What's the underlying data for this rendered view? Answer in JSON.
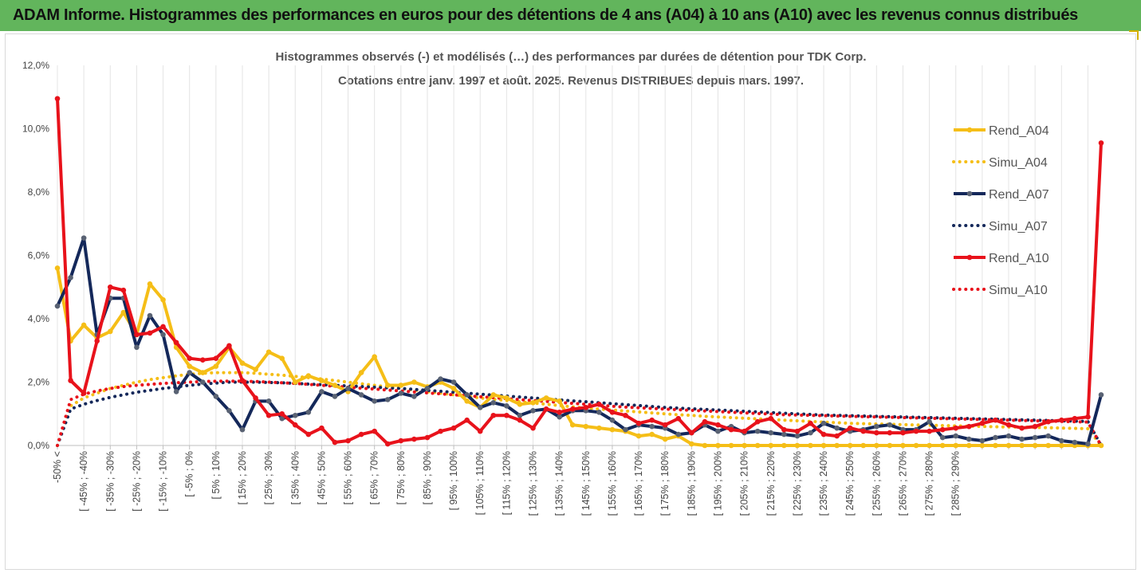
{
  "report_title": "ADAM Informe. Histogrammes des performances en euros pour des détentions de 4 ans (A04) à 10 ans (A10) avec les revenus connus distribués",
  "chart_data": {
    "type": "line",
    "title_lines": [
      "Histogrammes observés (-) et modélisés (…) des performances par durées de détention pour TDK Corp.",
      "Cotations entre janv. 1997 et août. 2025. Revenus DISTRIBUES depuis mars. 1997."
    ],
    "ylim": [
      0,
      12
    ],
    "y_ticks": [
      0,
      2,
      4,
      6,
      8,
      10,
      12
    ],
    "y_tick_labels": [
      "0,0%",
      "2,0%",
      "4,0%",
      "6,0%",
      "8,0%",
      "10,0%",
      "12,0%"
    ],
    "grid": "vertical",
    "legend_position": "right",
    "x_tick_labels": [
      "-50% <",
      "[ -45% ; -40%",
      "[ -35% ; -30%",
      "[ -25% ; -20%",
      "[ -15% ; -10%",
      "[ -5% ; 0%",
      "[ 5% ; 10%",
      "[ 15% ; 20%",
      "[ 25% ; 30%",
      "[ 35% ; 40%",
      "[ 45% ; 50%",
      "[ 55% ; 60%",
      "[ 65% ; 70%",
      "[ 75% ; 80%",
      "[ 85% ; 90%",
      "[ 95% ; 100%",
      "[ 105% ; 110%",
      "[ 115% ; 120%",
      "[ 125% ; 130%",
      "[ 135% ; 140%",
      "[ 145% ; 150%",
      "[ 155% ; 160%",
      "[ 165% ; 170%",
      "[ 175% ; 180%",
      "[ 185% ; 190%",
      "[ 195% ; 200%",
      "[ 205% ; 210%",
      "[ 215% ; 220%",
      "[ 225% ; 230%",
      "[ 235% ; 240%",
      "[ 245% ; 250%",
      "[ 255% ; 260%",
      "[ 265% ; 270%",
      "[ 275% ; 280%",
      "[ 285% ; 290%"
    ],
    "series": [
      {
        "name": "Rend_A04",
        "color": "#f5be17",
        "style": "solid-markers",
        "values": [
          5.6,
          3.3,
          3.8,
          3.4,
          3.6,
          4.2,
          3.5,
          5.1,
          4.6,
          3.1,
          2.5,
          2.3,
          2.5,
          3.1,
          2.6,
          2.4,
          2.95,
          2.75,
          2.0,
          2.2,
          2.05,
          1.9,
          1.7,
          2.3,
          2.8,
          1.9,
          1.9,
          2.0,
          1.85,
          2.0,
          1.8,
          1.4,
          1.2,
          1.6,
          1.5,
          1.3,
          1.35,
          1.5,
          1.4,
          0.65,
          0.6,
          0.55,
          0.5,
          0.45,
          0.3,
          0.35,
          0.2,
          0.3,
          0.05,
          0.0,
          0.0,
          0.0,
          0.0,
          0.0,
          0.0,
          0.0,
          0.0,
          0.0,
          0.0,
          0.0,
          0.0,
          0.0,
          0.0,
          0.0,
          0.0,
          0.0,
          0.0,
          0.0,
          0.0,
          0.0,
          0.0,
          0.0,
          0.0,
          0.0,
          0.0,
          0.0,
          0.0,
          0.0,
          0.0,
          0.0
        ]
      },
      {
        "name": "Simu_A04",
        "color": "#f5be17",
        "style": "dotted",
        "values": [
          0.0,
          1.25,
          1.5,
          1.65,
          1.8,
          1.9,
          2.0,
          2.08,
          2.14,
          2.2,
          2.25,
          2.28,
          2.3,
          2.3,
          2.3,
          2.28,
          2.25,
          2.22,
          2.18,
          2.14,
          2.1,
          2.05,
          2.0,
          1.95,
          1.9,
          1.85,
          1.8,
          1.75,
          1.7,
          1.65,
          1.6,
          1.55,
          1.5,
          1.46,
          1.42,
          1.38,
          1.34,
          1.3,
          1.26,
          1.22,
          1.18,
          1.15,
          1.12,
          1.09,
          1.06,
          1.03,
          1.0,
          0.97,
          0.95,
          0.92,
          0.9,
          0.88,
          0.86,
          0.84,
          0.82,
          0.8,
          0.78,
          0.76,
          0.74,
          0.72,
          0.7,
          0.69,
          0.68,
          0.67,
          0.66,
          0.65,
          0.64,
          0.63,
          0.62,
          0.61,
          0.6,
          0.59,
          0.58,
          0.58,
          0.57,
          0.56,
          0.55,
          0.54,
          0.53,
          0.0
        ]
      },
      {
        "name": "Rend_A07",
        "color": "#14285a",
        "style": "solid-markers",
        "values": [
          4.4,
          5.3,
          6.55,
          3.5,
          4.65,
          4.65,
          3.1,
          4.1,
          3.5,
          1.7,
          2.3,
          2.0,
          1.55,
          1.1,
          0.5,
          1.4,
          1.4,
          0.85,
          0.95,
          1.05,
          1.7,
          1.55,
          1.8,
          1.6,
          1.4,
          1.45,
          1.65,
          1.55,
          1.8,
          2.1,
          2.0,
          1.6,
          1.2,
          1.35,
          1.25,
          0.95,
          1.1,
          1.15,
          0.9,
          1.1,
          1.1,
          1.05,
          0.8,
          0.5,
          0.65,
          0.6,
          0.55,
          0.35,
          0.4,
          0.65,
          0.45,
          0.6,
          0.4,
          0.45,
          0.4,
          0.35,
          0.3,
          0.4,
          0.7,
          0.55,
          0.45,
          0.5,
          0.6,
          0.65,
          0.5,
          0.5,
          0.75,
          0.25,
          0.3,
          0.2,
          0.15,
          0.25,
          0.3,
          0.2,
          0.25,
          0.3,
          0.15,
          0.1,
          0.05,
          1.6
        ]
      },
      {
        "name": "Simu_A07",
        "color": "#14285a",
        "style": "dotted",
        "values": [
          0.0,
          1.15,
          1.3,
          1.42,
          1.52,
          1.6,
          1.68,
          1.74,
          1.8,
          1.85,
          1.9,
          1.94,
          1.97,
          2.0,
          2.0,
          2.0,
          1.99,
          1.98,
          1.96,
          1.94,
          1.92,
          1.9,
          1.88,
          1.86,
          1.84,
          1.82,
          1.8,
          1.77,
          1.74,
          1.71,
          1.68,
          1.65,
          1.62,
          1.59,
          1.56,
          1.53,
          1.5,
          1.47,
          1.44,
          1.41,
          1.38,
          1.35,
          1.32,
          1.29,
          1.26,
          1.23,
          1.2,
          1.18,
          1.16,
          1.14,
          1.12,
          1.1,
          1.08,
          1.06,
          1.04,
          1.02,
          1.0,
          0.98,
          0.96,
          0.95,
          0.94,
          0.93,
          0.92,
          0.91,
          0.9,
          0.89,
          0.88,
          0.87,
          0.86,
          0.85,
          0.84,
          0.83,
          0.82,
          0.81,
          0.8,
          0.79,
          0.78,
          0.77,
          0.76,
          0.0
        ]
      },
      {
        "name": "Rend_A10",
        "color": "#e8121b",
        "style": "solid-markers",
        "values": [
          10.95,
          2.05,
          1.65,
          3.3,
          5.0,
          4.9,
          3.5,
          3.55,
          3.75,
          3.25,
          2.75,
          2.7,
          2.75,
          3.15,
          2.05,
          1.5,
          0.95,
          1.0,
          0.65,
          0.35,
          0.55,
          0.1,
          0.15,
          0.35,
          0.45,
          0.05,
          0.15,
          0.2,
          0.25,
          0.45,
          0.55,
          0.8,
          0.45,
          0.95,
          0.95,
          0.8,
          0.55,
          1.15,
          1.05,
          1.15,
          1.2,
          1.3,
          1.05,
          0.95,
          0.7,
          0.8,
          0.65,
          0.85,
          0.4,
          0.75,
          0.65,
          0.5,
          0.45,
          0.75,
          0.85,
          0.5,
          0.45,
          0.7,
          0.35,
          0.3,
          0.55,
          0.45,
          0.4,
          0.4,
          0.4,
          0.45,
          0.45,
          0.5,
          0.55,
          0.6,
          0.7,
          0.8,
          0.65,
          0.55,
          0.6,
          0.75,
          0.8,
          0.85,
          0.9,
          9.55
        ]
      },
      {
        "name": "Simu_A10",
        "color": "#e8121b",
        "style": "dotted",
        "values": [
          0.0,
          1.45,
          1.62,
          1.72,
          1.8,
          1.86,
          1.9,
          1.93,
          1.96,
          1.98,
          2.0,
          2.02,
          2.03,
          2.03,
          2.03,
          2.02,
          2.0,
          1.98,
          1.96,
          1.93,
          1.9,
          1.87,
          1.84,
          1.81,
          1.78,
          1.75,
          1.72,
          1.69,
          1.66,
          1.63,
          1.6,
          1.57,
          1.54,
          1.51,
          1.48,
          1.45,
          1.42,
          1.39,
          1.36,
          1.33,
          1.3,
          1.27,
          1.24,
          1.21,
          1.19,
          1.17,
          1.15,
          1.13,
          1.11,
          1.09,
          1.07,
          1.05,
          1.03,
          1.01,
          0.99,
          0.97,
          0.96,
          0.95,
          0.94,
          0.93,
          0.92,
          0.91,
          0.9,
          0.89,
          0.88,
          0.87,
          0.86,
          0.85,
          0.84,
          0.83,
          0.82,
          0.81,
          0.8,
          0.79,
          0.78,
          0.77,
          0.76,
          0.75,
          0.74,
          0.0
        ]
      }
    ]
  }
}
